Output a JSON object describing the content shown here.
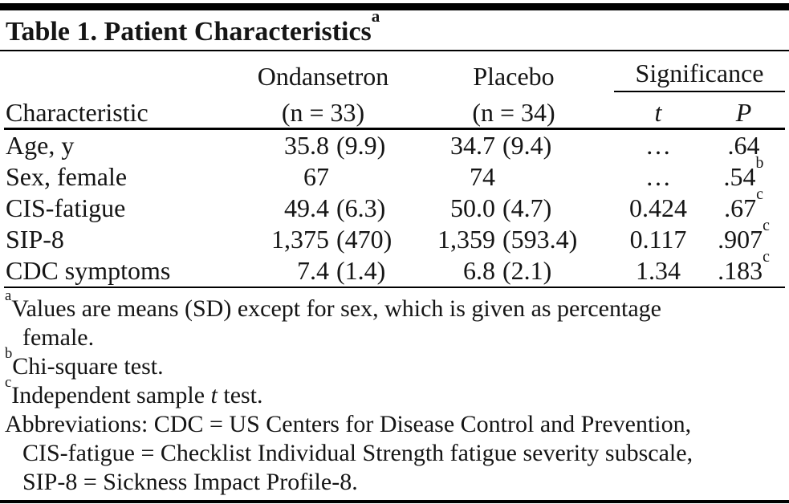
{
  "colors": {
    "background": "#ffffff",
    "text": "#151515",
    "rule": "#000000"
  },
  "title": {
    "text": "Table 1. Patient Characteristics",
    "superscript": "a"
  },
  "table": {
    "header": {
      "characteristic": "Characteristic",
      "ondansetron_line1": "Ondansetron",
      "ondansetron_line2": "(n = 33)",
      "placebo_line1": "Placebo",
      "placebo_line2": "(n = 34)",
      "significance": "Significance",
      "t_label": "t",
      "p_label": "P"
    },
    "rows": [
      {
        "characteristic": "Age, y",
        "ondansetron": {
          "mean": "35.8",
          "sd": "(9.9)"
        },
        "placebo": {
          "mean": "34.7",
          "sd": "(9.4)"
        },
        "t": "…",
        "p": ".64",
        "p_sup": ""
      },
      {
        "characteristic": "Sex, female",
        "ondansetron": {
          "mean": "67",
          "sd": ""
        },
        "placebo": {
          "mean": "74",
          "sd": ""
        },
        "t": "…",
        "p": ".54",
        "p_sup": "b"
      },
      {
        "characteristic": "CIS-fatigue",
        "ondansetron": {
          "mean": "49.4",
          "sd": "(6.3)"
        },
        "placebo": {
          "mean": "50.0",
          "sd": "(4.7)"
        },
        "t": "0.424",
        "p": ".67",
        "p_sup": "c"
      },
      {
        "characteristic": "SIP-8",
        "ondansetron": {
          "mean": "1,375",
          "sd": "(470)"
        },
        "placebo": {
          "mean": "1,359",
          "sd": "(593.4)"
        },
        "t": "0.117",
        "p": ".907",
        "p_sup": "c"
      },
      {
        "characteristic": "CDC symptoms",
        "ondansetron": {
          "mean": "7.4",
          "sd": "(1.4)"
        },
        "placebo": {
          "mean": "6.8",
          "sd": "(2.1)"
        },
        "t": "1.34",
        "p": ".183",
        "p_sup": "c"
      }
    ]
  },
  "footnotes": {
    "a": {
      "marker": "a",
      "line1": "Values are means (SD) except for sex, which is given as percentage",
      "line2": "female."
    },
    "b": {
      "marker": "b",
      "text": "Chi-square test."
    },
    "c": {
      "marker": "c",
      "text_before_italic": "Independent sample ",
      "italic_word": "t",
      "text_after_italic": " test."
    },
    "abbreviations": {
      "line1": "Abbreviations: CDC = US Centers for Disease Control and Prevention,",
      "line2": "CIS-fatigue = Checklist Individual Strength fatigue severity subscale,",
      "line3": "SIP-8 = Sickness Impact Profile-8."
    }
  }
}
